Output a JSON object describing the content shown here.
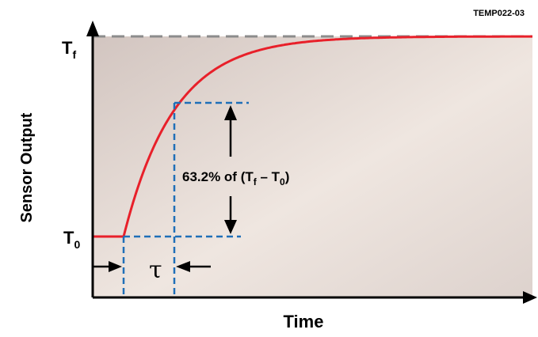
{
  "chart_data": {
    "type": "line",
    "figure_id": "TEMP022-03",
    "xlabel": "Time",
    "ylabel": "Sensor Output",
    "y_initial_label": {
      "base": "T",
      "sub": "0"
    },
    "y_final_label": {
      "base": "T",
      "sub": "f"
    },
    "tau_label": "τ",
    "annotation": {
      "prefix": "63.2% of (T",
      "sub1": "f",
      "mid": " – T",
      "sub2": "0",
      "suffix": ")"
    },
    "step_fraction": 0.632,
    "series": [
      {
        "line_color": "#e8202a"
      }
    ],
    "colors": {
      "curve": "#e8202a",
      "final_dash": "#8c8c8c",
      "guides": "#1f6fb8",
      "axis": "#000000"
    }
  }
}
